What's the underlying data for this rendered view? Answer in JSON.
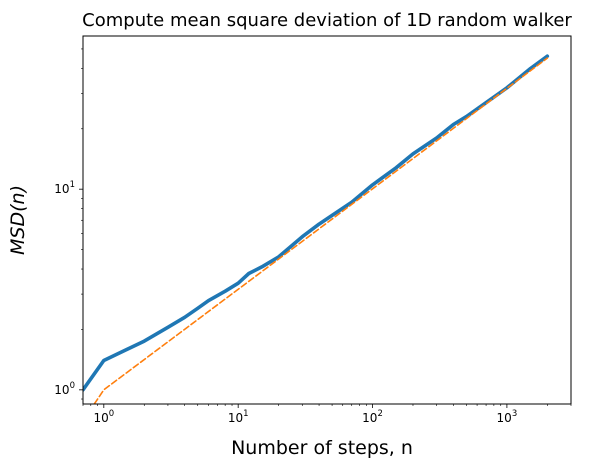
{
  "chart_data": {
    "type": "line",
    "title": "Compute mean square deviation of 1D random walker",
    "xlabel": "Number of steps, n",
    "ylabel": "MSD(n)",
    "xscale": "log",
    "yscale": "log",
    "xlim": [
      0.7,
      3000
    ],
    "ylim": [
      0.85,
      58
    ],
    "grid": false,
    "legend": "none",
    "x_ticks": [
      {
        "base": "10",
        "exp": "0",
        "value": 1
      },
      {
        "base": "10",
        "exp": "1",
        "value": 10
      },
      {
        "base": "10",
        "exp": "2",
        "value": 100
      },
      {
        "base": "10",
        "exp": "3",
        "value": 1000
      }
    ],
    "y_ticks": [
      {
        "base": "10",
        "exp": "0",
        "value": 1
      },
      {
        "base": "10",
        "exp": "1",
        "value": 10
      }
    ],
    "series": [
      {
        "color": "#1f77b4",
        "style": "solid",
        "x": [
          0.7,
          1,
          2,
          3,
          4,
          5,
          6,
          8,
          10,
          12,
          15,
          20,
          30,
          40,
          50,
          70,
          100,
          150,
          200,
          300,
          400,
          500,
          700,
          1000,
          1500,
          2000
        ],
        "y": [
          1.0,
          1.4,
          1.75,
          2.05,
          2.3,
          2.55,
          2.78,
          3.1,
          3.4,
          3.8,
          4.1,
          4.6,
          5.8,
          6.7,
          7.4,
          8.6,
          10.5,
          12.8,
          15.0,
          18.0,
          21.0,
          23.0,
          27.0,
          32.0,
          40.0,
          46.0
        ]
      },
      {
        "color": "#ff7f0e",
        "style": "dashed",
        "x": [
          0.85,
          1,
          2000
        ],
        "y": [
          0.85,
          1,
          45
        ]
      }
    ]
  }
}
